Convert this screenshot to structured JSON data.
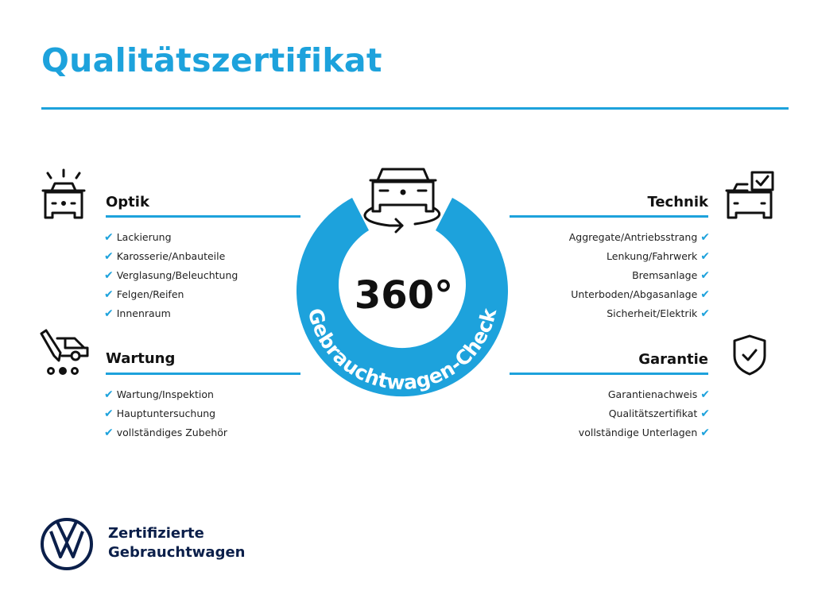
{
  "title": "Qualitätszertifikat",
  "colors": {
    "accent": "#1da2dc",
    "brand": "#0b1f4a"
  },
  "badge": {
    "value": "360°",
    "label": "Gebrauchtwagen-Check",
    "icon": "car-rotate-icon"
  },
  "sections": {
    "optik": {
      "title": "Optik",
      "icon": "car-lights-icon",
      "items": [
        "Lackierung",
        "Karosserie/Anbauteile",
        "Verglasung/Beleuchtung",
        "Felgen/Reifen",
        "Innenraum"
      ]
    },
    "wartung": {
      "title": "Wartung",
      "icon": "service-tool-icon",
      "items": [
        "Wartung/Inspektion",
        "Hauptuntersuchung",
        "vollständiges Zubehör"
      ]
    },
    "technik": {
      "title": "Technik",
      "icon": "car-checklist-icon",
      "items": [
        "Aggregate/Antriebsstrang",
        "Lenkung/Fahrwerk",
        "Bremsanlage",
        "Unterboden/Abgasanlage",
        "Sicherheit/Elektrik"
      ]
    },
    "garantie": {
      "title": "Garantie",
      "icon": "shield-check-icon",
      "items": [
        "Garantienachweis",
        "Qualitätszertifikat",
        "vollständige Unterlagen"
      ]
    }
  },
  "check_mark": "✔",
  "footer": {
    "line1": "Zertifizierte",
    "line2": "Gebrauchtwagen",
    "logo": "vw-logo"
  }
}
